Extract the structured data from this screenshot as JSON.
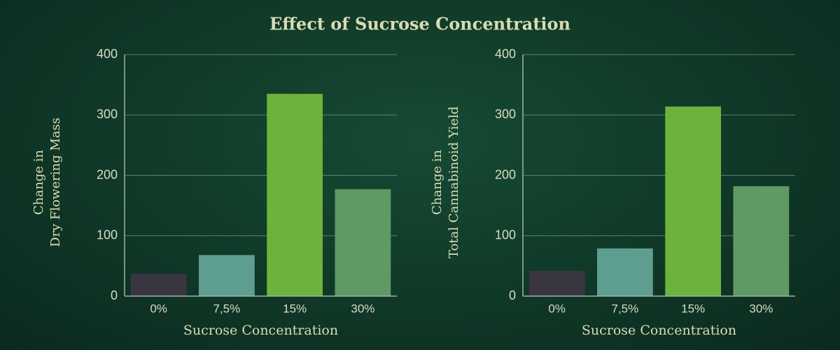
{
  "title": "Effect of Sucrose Concentration",
  "chart_data": [
    {
      "type": "bar",
      "ylabel": [
        "Change in",
        "Dry Flowering Mass"
      ],
      "xlabel": "Sucrose Concentration",
      "categories": [
        "0%",
        "7,5%",
        "15%",
        "30%"
      ],
      "values": [
        37,
        68,
        335,
        177
      ],
      "colors": [
        "#3a3641",
        "#5e9e90",
        "#6cb33d",
        "#5f9a63"
      ],
      "ylim": [
        0,
        400
      ],
      "yticks": [
        0,
        100,
        200,
        300,
        400
      ],
      "grid": true
    },
    {
      "type": "bar",
      "ylabel": [
        "Change in",
        "Total Cannabinoid Yield"
      ],
      "xlabel": "Sucrose Concentration",
      "categories": [
        "0%",
        "7,5%",
        "15%",
        "30%"
      ],
      "values": [
        42,
        79,
        314,
        182
      ],
      "colors": [
        "#3a3641",
        "#5e9e90",
        "#6cb33d",
        "#5f9a63"
      ],
      "ylim": [
        0,
        400
      ],
      "yticks": [
        0,
        100,
        200,
        300,
        400
      ],
      "grid": true
    }
  ]
}
